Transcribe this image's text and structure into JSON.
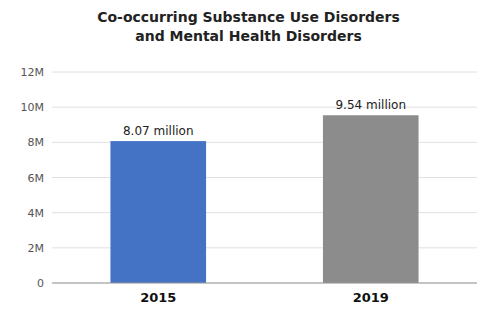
{
  "chart_data": {
    "type": "bar",
    "title": "Co-occurring Substance Use Disorders",
    "subtitle": "and Mental Health Disorders",
    "categories": [
      "2015",
      "2019"
    ],
    "values": [
      8.07,
      9.54
    ],
    "value_labels": [
      "8.07 million",
      "9.54 million"
    ],
    "colors": [
      "#4472c4",
      "#8c8c8c"
    ],
    "ylim": [
      0,
      12
    ],
    "yticks": [
      0,
      {
        "value": 2,
        "label": "2M"
      },
      {
        "value": 4,
        "label": "4M"
      },
      {
        "value": 6,
        "label": "6M"
      },
      {
        "value": 8,
        "label": "8M"
      },
      {
        "value": 10,
        "label": "10M"
      },
      {
        "value": 12,
        "label": "12M"
      }
    ],
    "grid": true,
    "data_labels": true
  }
}
